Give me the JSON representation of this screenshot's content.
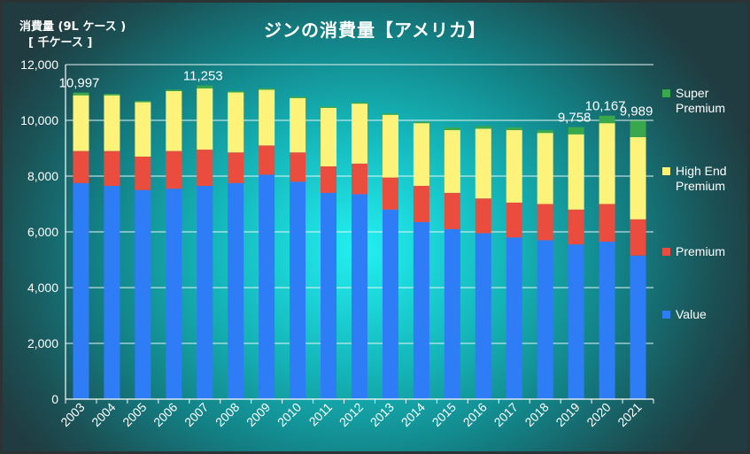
{
  "chart_data": {
    "type": "bar",
    "stacked": true,
    "title": "ジンの消費量【アメリカ】",
    "ylabel_line1": "消費量 (9L ケース )",
    "ylabel_line2": "[ 千ケース ]",
    "categories": [
      "2003",
      "2004",
      "2005",
      "2006",
      "2007",
      "2008",
      "2009",
      "2010",
      "2011",
      "2012",
      "2013",
      "2014",
      "2015",
      "2016",
      "2017",
      "2018",
      "2019",
      "2020",
      "2021"
    ],
    "series": [
      {
        "name": "Value",
        "color": "#2f7df6",
        "values": [
          7750,
          7650,
          7500,
          7550,
          7650,
          7750,
          8050,
          7800,
          7400,
          7350,
          6800,
          6350,
          6100,
          5950,
          5800,
          5700,
          5550,
          5650,
          5150
        ]
      },
      {
        "name": "Premium",
        "color": "#ea4d3d",
        "values": [
          1150,
          1250,
          1200,
          1350,
          1300,
          1100,
          1050,
          1050,
          950,
          1100,
          1150,
          1300,
          1300,
          1250,
          1250,
          1300,
          1250,
          1350,
          1300
        ]
      },
      {
        "name": "High End Premium",
        "color": "#fdf27a",
        "values": [
          2000,
          2000,
          1950,
          2150,
          2200,
          2150,
          2000,
          1950,
          2100,
          2150,
          2250,
          2250,
          2250,
          2500,
          2600,
          2550,
          2700,
          2900,
          2950
        ]
      },
      {
        "name": "Super Premium",
        "color": "#39a84c",
        "values": [
          97,
          50,
          50,
          50,
          103,
          50,
          50,
          50,
          50,
          50,
          50,
          50,
          100,
          100,
          100,
          100,
          258,
          267,
          589
        ]
      }
    ],
    "total_labels": [
      {
        "index": 0,
        "text": "10,997"
      },
      {
        "index": 4,
        "text": "11,253"
      },
      {
        "index": 16,
        "text": "9,758"
      },
      {
        "index": 17,
        "text": "10,167"
      },
      {
        "index": 18,
        "text": "9,989"
      }
    ],
    "yticks": [
      "0",
      "2,000",
      "4,000",
      "6,000",
      "8,000",
      "10,000",
      "12,000"
    ],
    "ylim": [
      0,
      12000
    ],
    "grid": true,
    "legend_position": "right",
    "legend": [
      "Super Premium",
      "High End Premium",
      "Premium",
      "Value"
    ]
  }
}
